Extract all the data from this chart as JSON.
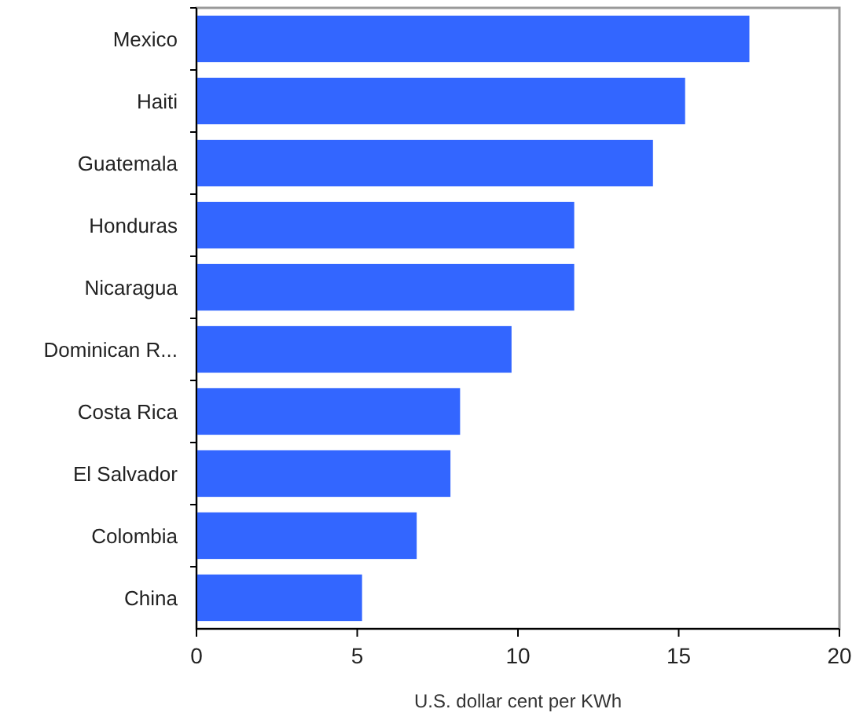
{
  "chart_data": {
    "type": "bar",
    "orientation": "horizontal",
    "xlabel": "U.S. dollar cent per KWh",
    "categories": [
      "Mexico",
      "Haiti",
      "Guatemala",
      "Honduras",
      "Nicaragua",
      "Dominican R...",
      "Costa Rica",
      "El Salvador",
      "Colombia",
      "China"
    ],
    "values": [
      17.2,
      15.2,
      14.2,
      11.75,
      11.75,
      9.8,
      8.2,
      7.9,
      6.85,
      5.15
    ],
    "color": "#3366ff",
    "xlim": [
      0,
      20
    ],
    "xticks": [
      0,
      5,
      10,
      15,
      20
    ],
    "grid": false
  }
}
